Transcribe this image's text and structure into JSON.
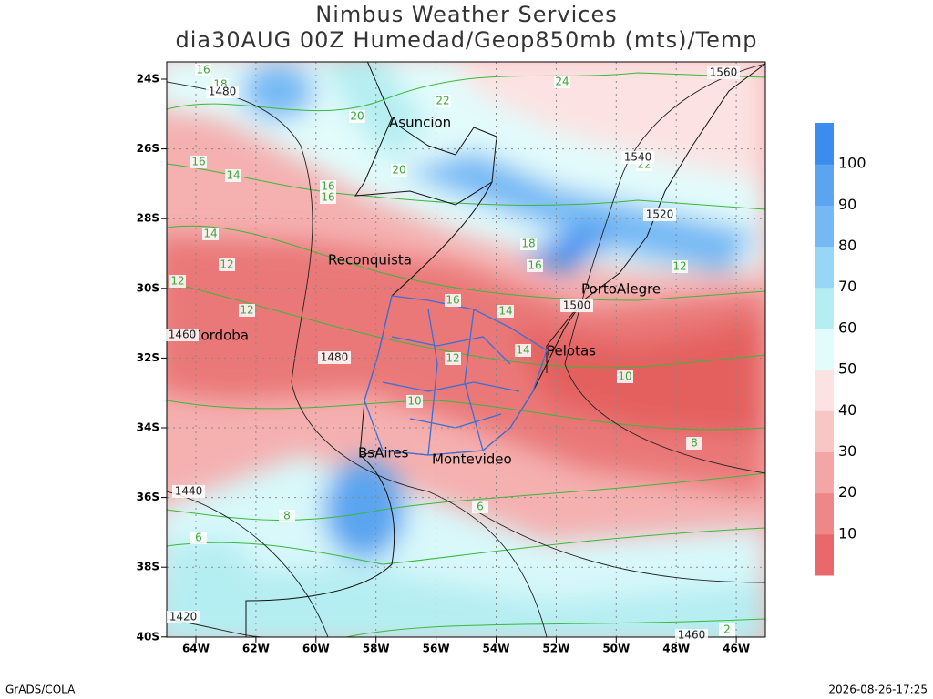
{
  "header": {
    "title": "Nimbus Weather Services",
    "subtitle": "dia30AUG 00Z Humedad/Geop850mb (mts)/Temp"
  },
  "map": {
    "lat_labels": [
      "24S",
      "26S",
      "28S",
      "30S",
      "32S",
      "34S",
      "36S",
      "38S",
      "40S"
    ],
    "lon_labels": [
      "64W",
      "62W",
      "60W",
      "58W",
      "56W",
      "54W",
      "52W",
      "50W",
      "48W",
      "46W"
    ],
    "cities": [
      {
        "label": "Asuncion"
      },
      {
        "label": "Reconquista"
      },
      {
        "label": "PortoAlegre"
      },
      {
        "label": "Cordoba"
      },
      {
        "label": "Pelotas"
      },
      {
        "label": "BsAires"
      },
      {
        "label": "Montevideo"
      }
    ],
    "temperature_labels": [
      "24",
      "18",
      "16",
      "22",
      "20",
      "16",
      "14",
      "16",
      "20",
      "22",
      "14",
      "12",
      "18",
      "16",
      "14",
      "12",
      "16",
      "16",
      "12",
      "12",
      "14",
      "12",
      "10",
      "10",
      "8",
      "8",
      "6",
      "6",
      "2"
    ],
    "height_labels": [
      "1480",
      "1560",
      "1540",
      "1520",
      "1500",
      "1480",
      "1460",
      "1440",
      "1420",
      "1460"
    ]
  },
  "colorbar": {
    "levels": [
      10,
      20,
      30,
      40,
      50,
      60,
      70,
      80,
      90,
      100
    ],
    "colors": [
      "#e8686b",
      "#ee8888",
      "#f4a6a6",
      "#f9c6c6",
      "#fce2e2",
      "#e2fbfb",
      "#b5eef2",
      "#98d6f6",
      "#75b9f4",
      "#5aa4f0",
      "#3a8cee"
    ]
  },
  "footer": {
    "left": "GrADS/COLA",
    "right": "2026-08-26-17:25"
  }
}
